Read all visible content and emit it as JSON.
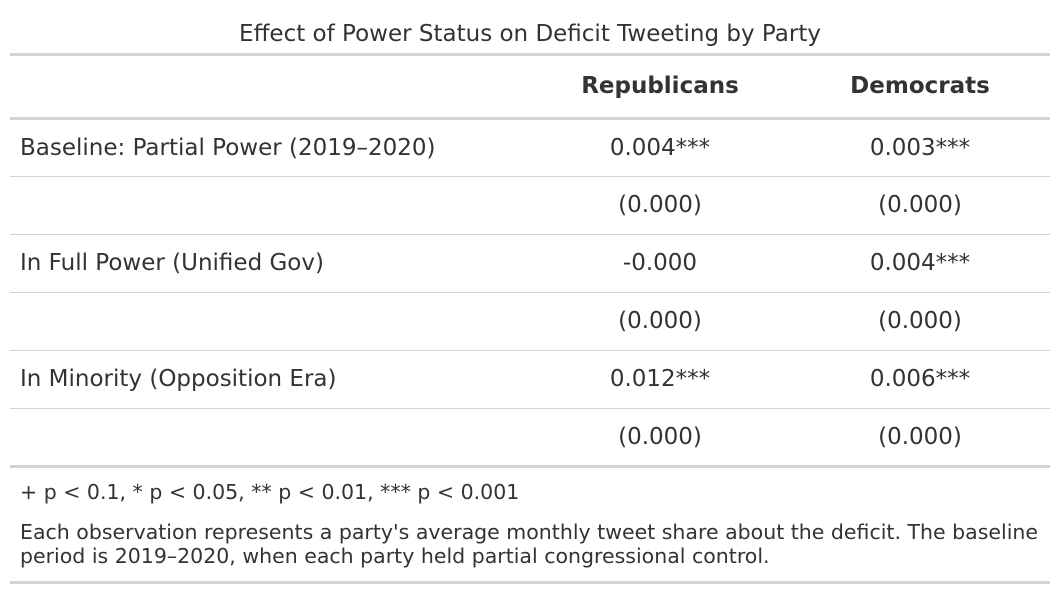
{
  "table": {
    "title": "Effect of Power Status on Deficit Tweeting by Party",
    "columns": [
      "",
      "Republicans",
      "Democrats"
    ],
    "rows": [
      {
        "label": "Baseline: Partial Power (2019–2020)",
        "republicans": "0.004***",
        "democrats": "0.003***"
      },
      {
        "label": "",
        "republicans": "(0.000)",
        "democrats": "(0.000)"
      },
      {
        "label": "In Full Power (Unified Gov)",
        "republicans": "-0.000",
        "democrats": "0.004***"
      },
      {
        "label": "",
        "republicans": "(0.000)",
        "democrats": "(0.000)"
      },
      {
        "label": "In Minority (Opposition Era)",
        "republicans": "0.012***",
        "democrats": "0.006***"
      },
      {
        "label": "",
        "republicans": "(0.000)",
        "democrats": "(0.000)"
      }
    ],
    "significance_note": "+ p < 0.1, * p < 0.05, ** p < 0.01, *** p < 0.001",
    "footnote": "Each observation represents a party's average monthly tweet share about the deficit. The baseline period is 2019–2020, when each party held partial congressional control."
  }
}
